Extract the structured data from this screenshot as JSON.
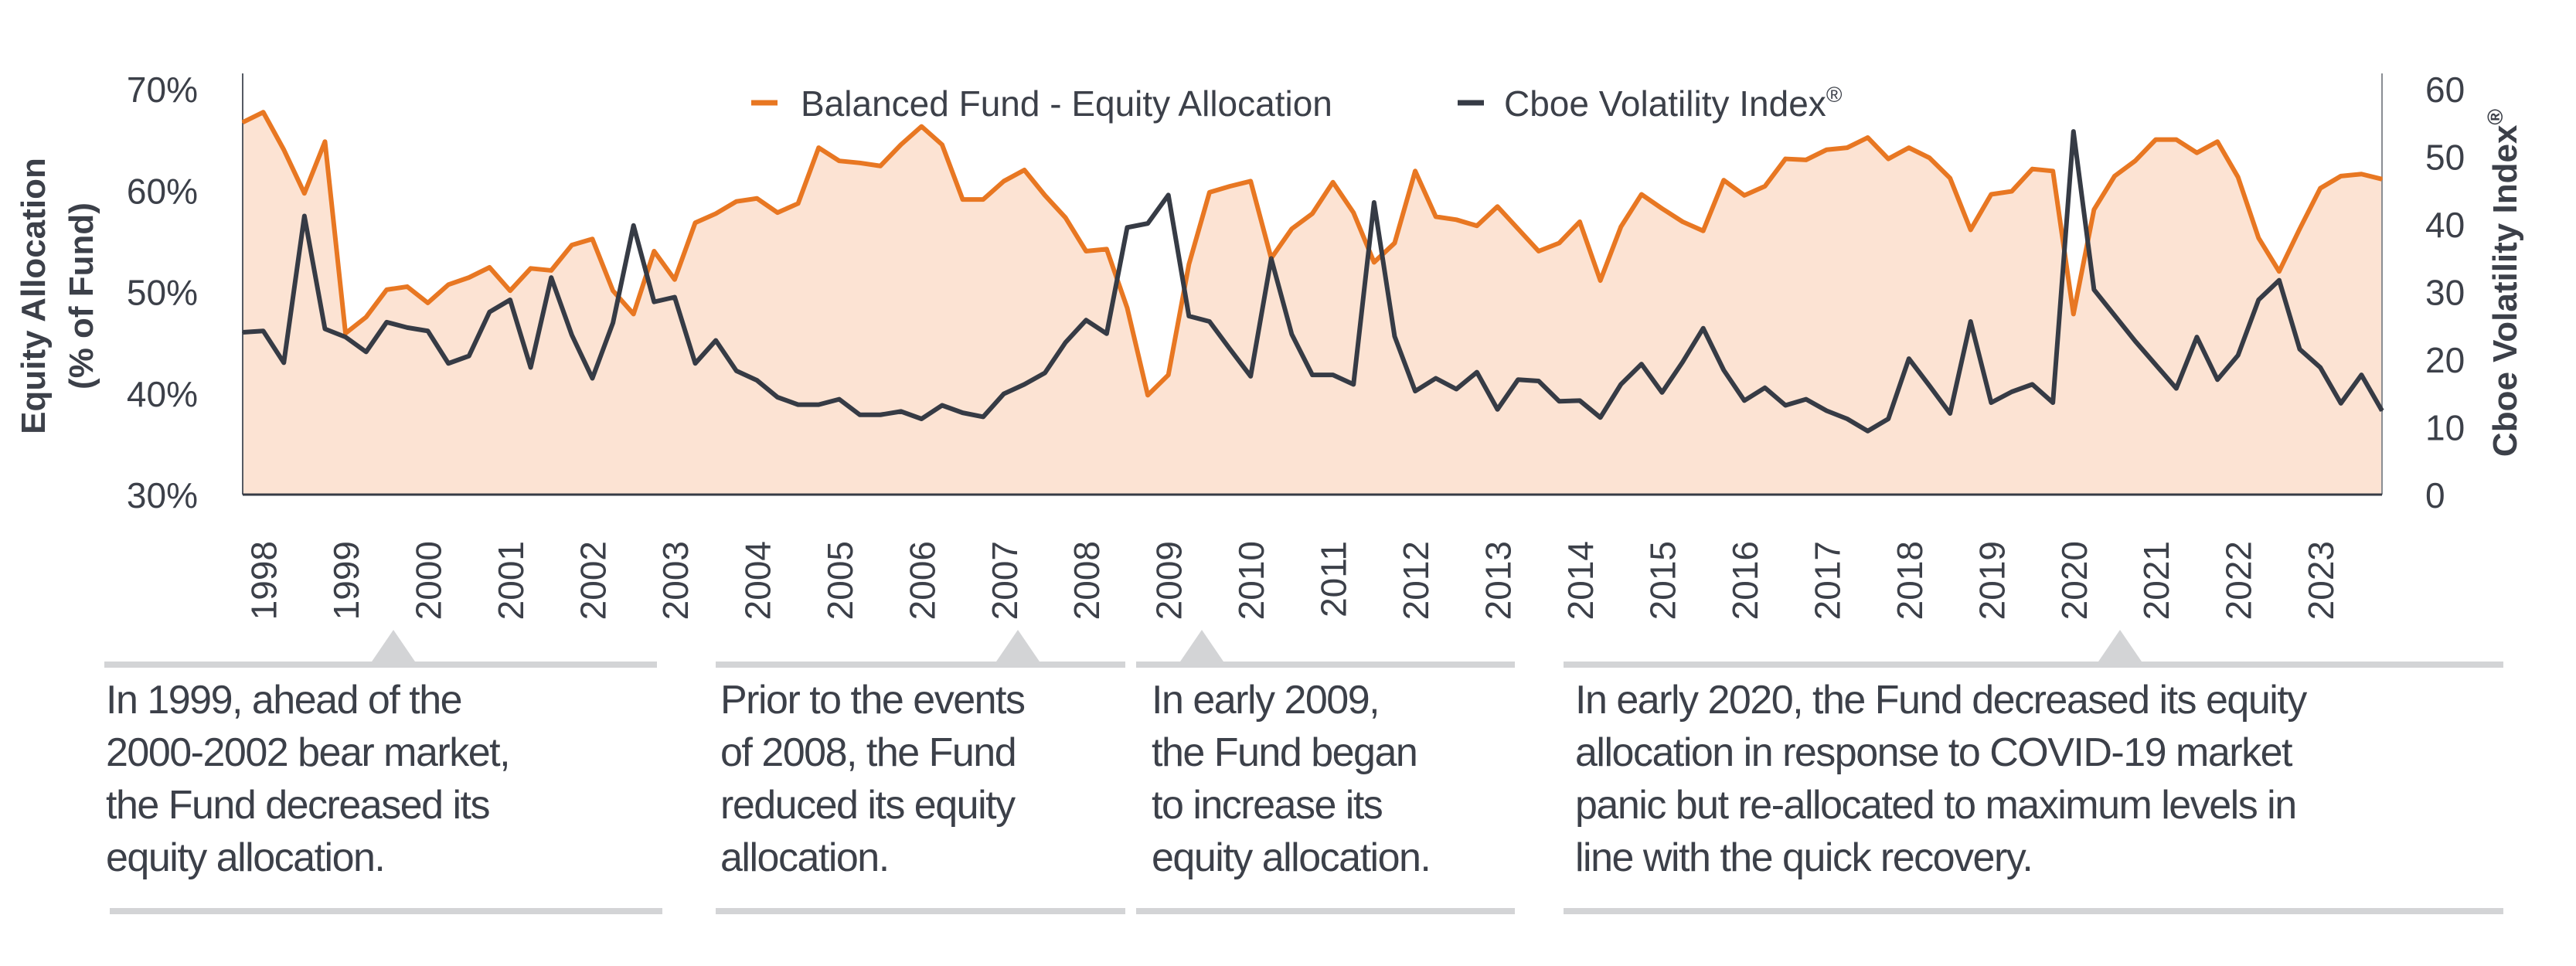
{
  "chart_data": {
    "type": "line",
    "legend_position": "top-center",
    "grid": false,
    "y_left": {
      "label_line1": "Equity Allocation",
      "label_line2": "(% of Fund)",
      "range": [
        30,
        70
      ],
      "ticks": [
        "30%",
        "40%",
        "50%",
        "60%",
        "70%"
      ]
    },
    "y_right": {
      "label": "Cboe Volatility Index",
      "label_mark": "®",
      "range": [
        0,
        60
      ],
      "ticks": [
        "0",
        "10",
        "20",
        "30",
        "40",
        "50",
        "60"
      ]
    },
    "x_ticks": [
      "1998",
      "1999",
      "2000",
      "2001",
      "2002",
      "2003",
      "2004",
      "2005",
      "2006",
      "2007",
      "2008",
      "2009",
      "2010",
      "2011",
      "2012",
      "2013",
      "2014",
      "2015",
      "2016",
      "2017",
      "2018",
      "2019",
      "2020",
      "2021",
      "2022",
      "2023"
    ],
    "series": [
      {
        "name": "Balanced Fund - Equity Allocation",
        "axis": "left",
        "color": "#e87722",
        "fill": "#fce3d3",
        "values": [
          66.7,
          67.7,
          64.0,
          59.7,
          64.8,
          45.9,
          47.5,
          50.2,
          50.5,
          48.9,
          50.7,
          51.4,
          52.4,
          50.1,
          52.3,
          52.1,
          54.6,
          55.2,
          50.1,
          47.8,
          54.0,
          51.2,
          56.8,
          57.7,
          58.9,
          59.2,
          57.8,
          58.7,
          64.2,
          62.9,
          62.7,
          62.4,
          64.5,
          66.3,
          64.5,
          59.1,
          59.1,
          60.9,
          62.0,
          59.5,
          57.3,
          54.0,
          54.2,
          48.4,
          39.8,
          41.8,
          52.7,
          59.8,
          60.4,
          60.9,
          53.3,
          56.2,
          57.7,
          60.8,
          57.8,
          52.9,
          54.8,
          61.9,
          57.4,
          57.1,
          56.5,
          58.4,
          56.2,
          54.0,
          54.8,
          56.9,
          51.1,
          56.4,
          59.6,
          58.2,
          56.9,
          56.0,
          61.0,
          59.5,
          60.4,
          63.1,
          63.0,
          64.0,
          64.2,
          65.2,
          63.1,
          64.2,
          63.2,
          61.2,
          56.1,
          59.6,
          59.9,
          62.1,
          61.9,
          47.8,
          58.1,
          61.4,
          62.9,
          65.0,
          65.0,
          63.7,
          64.8,
          61.3,
          55.3,
          52.0,
          56.2,
          60.2,
          61.4,
          61.6,
          61.1
        ]
      },
      {
        "name": "Cboe Volatility Index",
        "name_mark": "®",
        "axis": "right",
        "color": "#363b45",
        "values": [
          24.0,
          24.2,
          19.5,
          41.2,
          24.5,
          23.3,
          21.1,
          25.5,
          24.7,
          24.2,
          19.4,
          20.5,
          27.0,
          28.8,
          18.8,
          32.1,
          23.6,
          17.2,
          25.4,
          39.8,
          28.5,
          29.2,
          19.4,
          22.8,
          18.3,
          16.9,
          14.4,
          13.3,
          13.3,
          14.1,
          11.8,
          11.8,
          12.3,
          11.2,
          13.2,
          12.1,
          11.5,
          14.9,
          16.3,
          18.0,
          22.5,
          25.8,
          23.8,
          39.5,
          40.1,
          44.3,
          26.4,
          25.6,
          21.5,
          17.5,
          34.9,
          23.7,
          17.7,
          17.7,
          16.3,
          43.2,
          23.4,
          15.3,
          17.2,
          15.6,
          18.1,
          12.6,
          17.0,
          16.8,
          13.8,
          13.9,
          11.4,
          16.3,
          19.3,
          15.1,
          19.6,
          24.6,
          18.4,
          13.9,
          15.8,
          13.2,
          14.1,
          12.4,
          11.2,
          9.4,
          11.2,
          20.1,
          16.1,
          12.0,
          25.6,
          13.6,
          15.2,
          16.3,
          13.6,
          53.7,
          30.3,
          26.5,
          22.7,
          19.2,
          15.7,
          23.3,
          17.0,
          20.6,
          28.8,
          31.7,
          21.5,
          18.8,
          13.5,
          17.7,
          12.4
        ]
      }
    ]
  },
  "annotations": [
    {
      "lines": [
        "In 1999, ahead of the",
        "2000-2002 bear market,",
        "the Fund decreased its",
        "equity allocation."
      ]
    },
    {
      "lines": [
        "Prior to the events",
        "of 2008, the Fund",
        "reduced its equity",
        "allocation."
      ]
    },
    {
      "lines": [
        "In early 2009,",
        "the Fund began",
        "to increase its",
        "equity allocation."
      ]
    },
    {
      "lines": [
        "In early 2020, the Fund decreased its equity",
        "allocation in response to COVID-19 market",
        "panic but re-allocated to maximum levels in",
        "line with the quick recovery."
      ]
    }
  ]
}
